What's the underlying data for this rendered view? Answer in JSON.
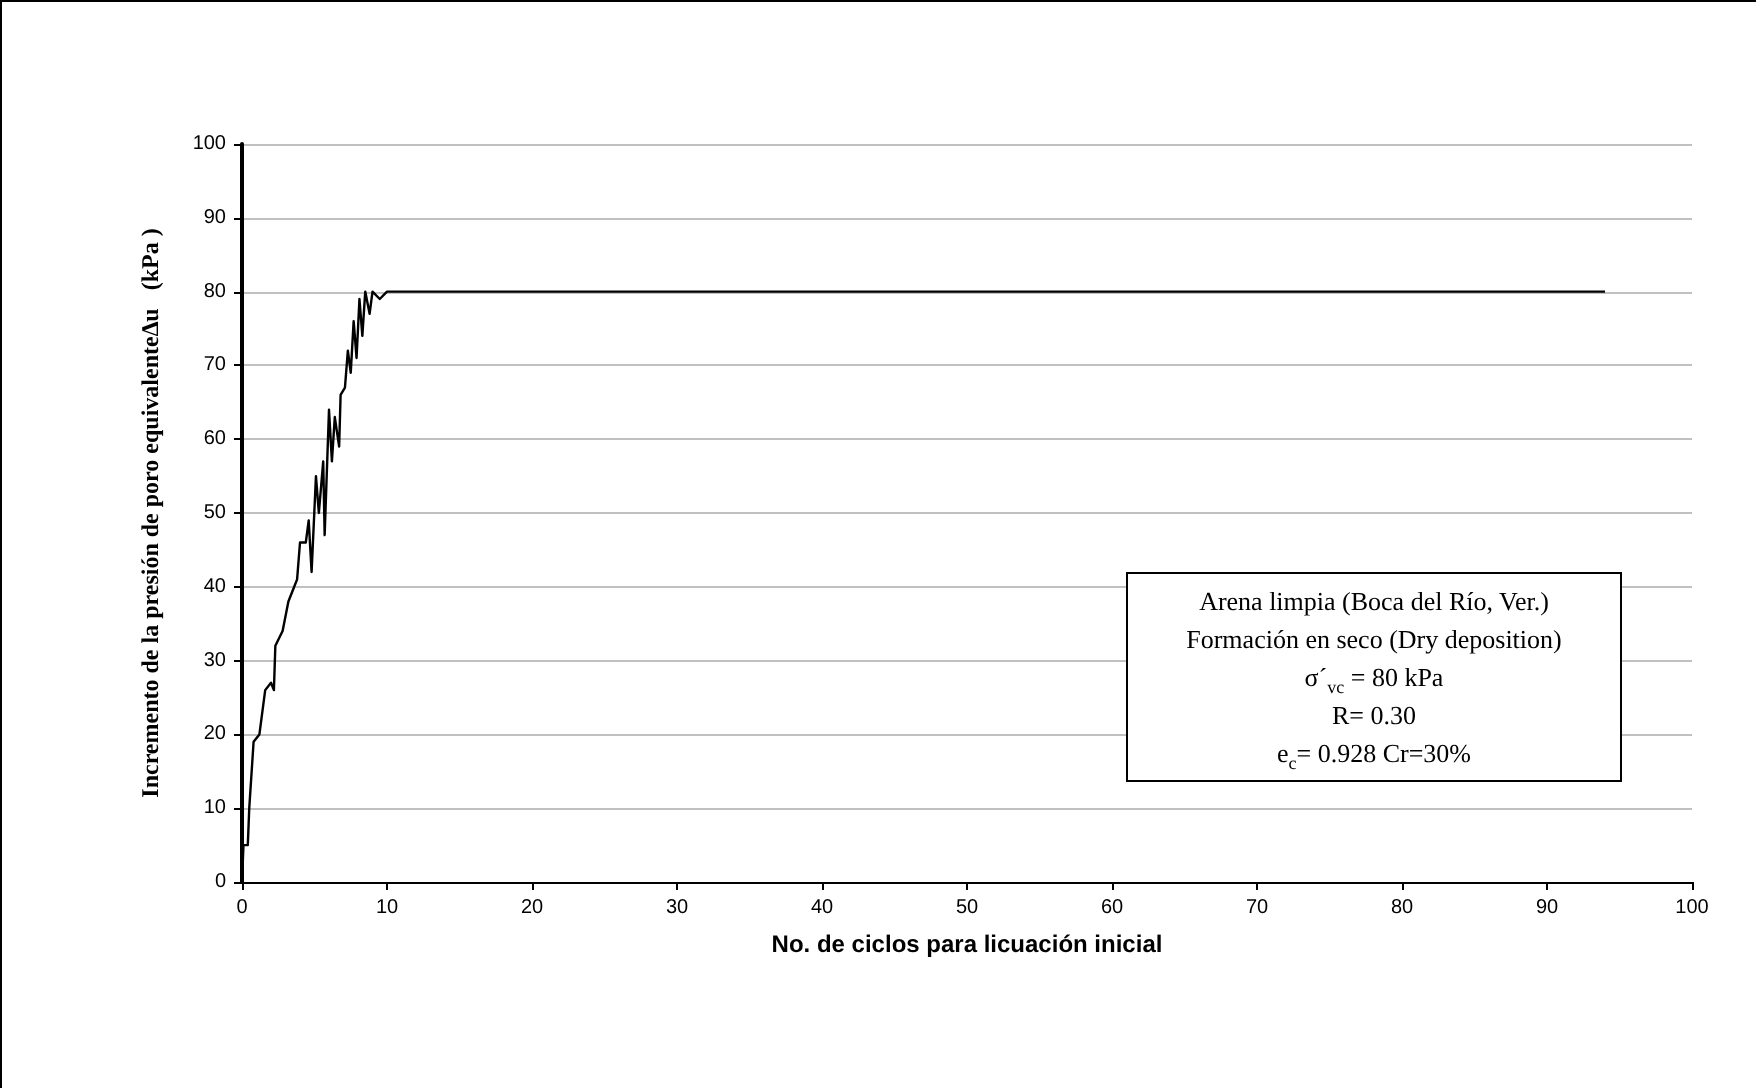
{
  "chart_data": {
    "type": "line",
    "xlabel": "No. de ciclos para licuación inicial",
    "ylabel": "Incremento de la presión de poro equivalente∆u   (kPa )",
    "x": [
      0,
      0.1,
      0.4,
      0.5,
      0.8,
      1.2,
      1.6,
      2,
      2.2,
      2.3,
      2.8,
      3.2,
      3.6,
      3.8,
      4,
      4.4,
      4.6,
      4.8,
      5.1,
      5.3,
      5.6,
      5.7,
      6,
      6.2,
      6.4,
      6.7,
      6.8,
      7.1,
      7.3,
      7.5,
      7.7,
      7.9,
      8.1,
      8.3,
      8.5,
      8.8,
      9,
      9.5,
      10,
      20,
      30,
      40,
      50,
      60,
      70,
      80,
      90,
      94
    ],
    "series": [
      {
        "color": "#000000",
        "values": [
          0,
          5,
          5,
          10,
          19,
          20,
          26,
          27,
          26,
          32,
          34,
          38,
          40,
          41,
          46,
          46,
          49,
          42,
          55,
          50,
          57,
          47,
          64,
          57,
          63,
          59,
          66,
          67,
          72,
          69,
          76,
          71,
          79,
          74,
          80,
          77,
          80,
          79,
          80,
          80,
          80,
          80,
          80,
          80,
          80,
          80,
          80,
          80
        ]
      }
    ],
    "xlim": [
      0,
      100
    ],
    "xticks": [
      0,
      10,
      20,
      30,
      40,
      50,
      60,
      70,
      80,
      90,
      100
    ],
    "ylim": [
      0,
      100
    ],
    "yticks": [
      0,
      10,
      20,
      30,
      40,
      50,
      60,
      70,
      80,
      90,
      100
    ],
    "grid": "y",
    "marker": "none",
    "line_style": "solid",
    "annotations": [
      "Arena limpia (Boca del Río, Ver.)",
      "Formación en seco (Dry deposition)",
      "σ´$_{vc}$ = 80 kPa",
      "R= 0.30",
      "e$_{c}$= 0.928   Cr=30%"
    ]
  }
}
